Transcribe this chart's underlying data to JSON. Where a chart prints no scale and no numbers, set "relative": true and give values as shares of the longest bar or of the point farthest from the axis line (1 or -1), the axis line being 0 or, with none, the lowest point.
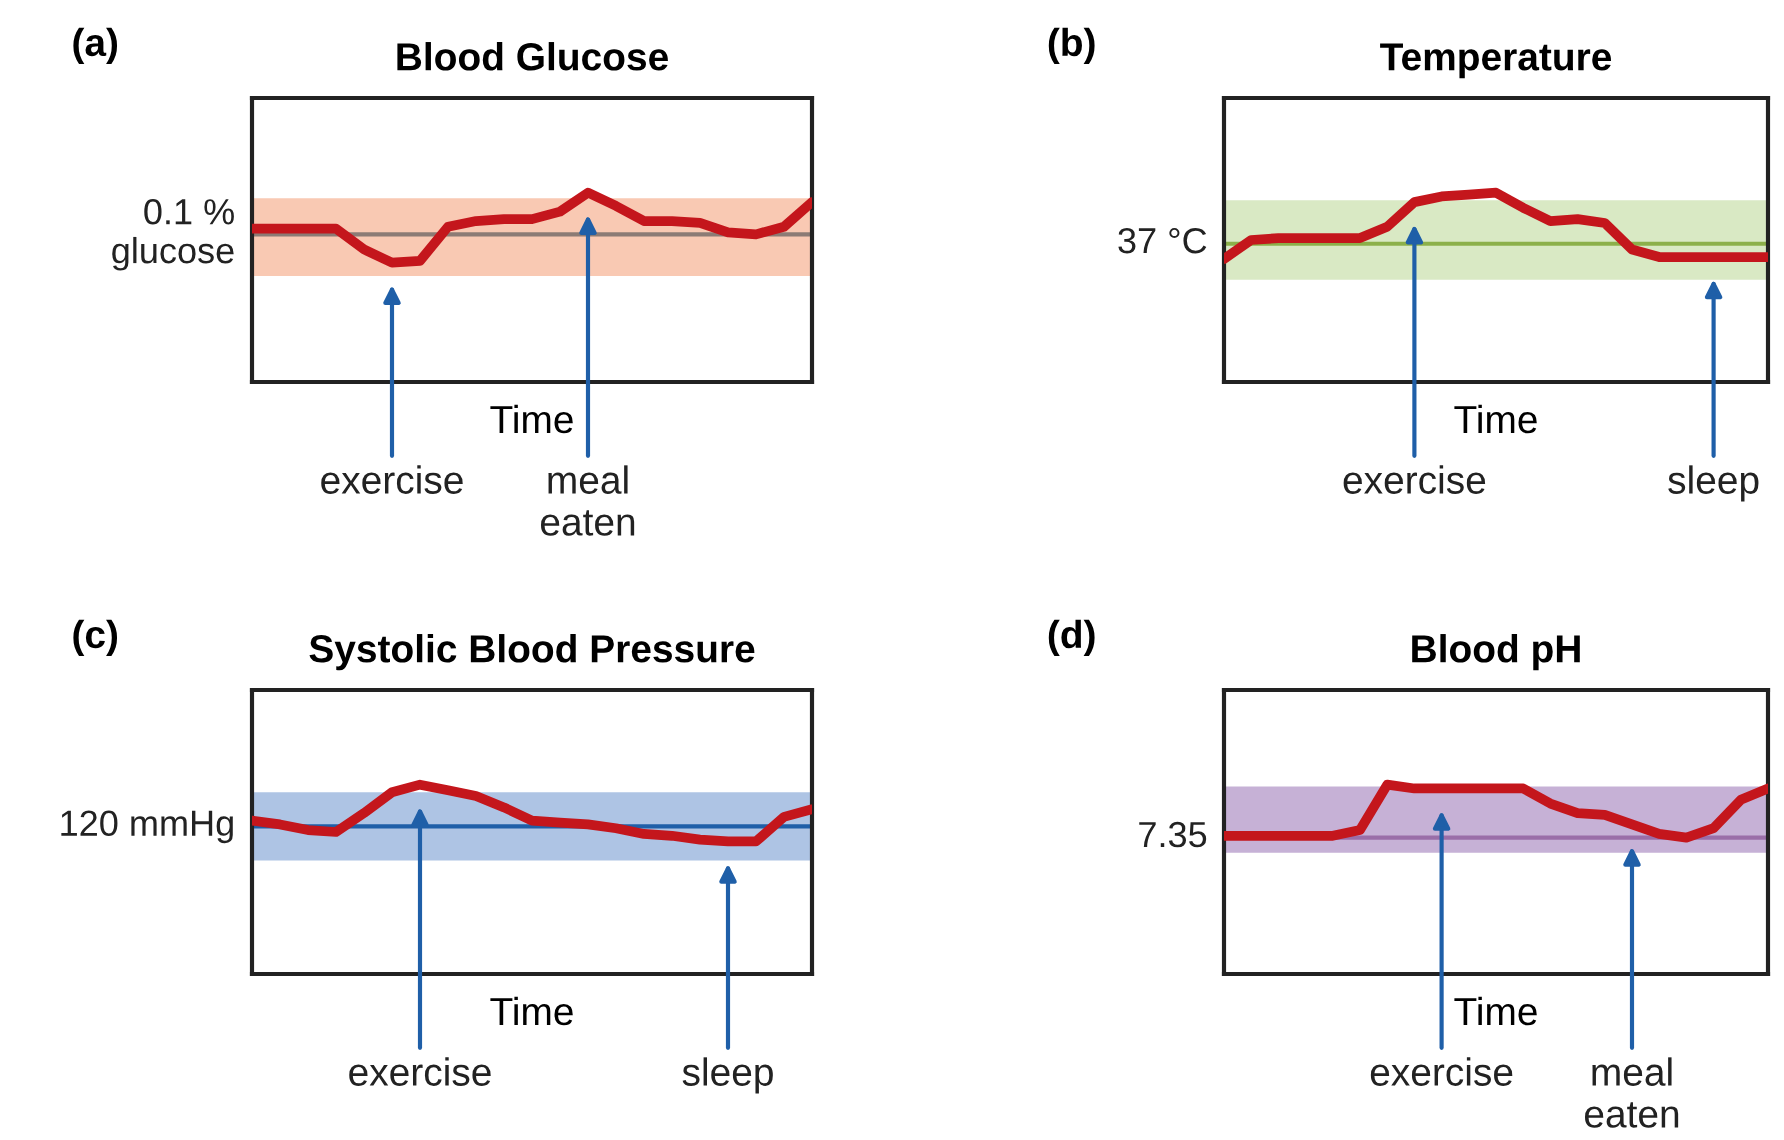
{
  "chart_data": [
    {
      "type": "line",
      "title": "Blood Glucose",
      "xlabel": "Time",
      "relative": true,
      "categories": [
        null,
        null,
        null,
        null,
        null,
        "exercise",
        null,
        null,
        null,
        null,
        null,
        null,
        "meal\neaten",
        null,
        null,
        null,
        null,
        null,
        null,
        null,
        null
      ],
      "series": [
        {
          "color": "#c4161c",
          "values": [
            0.81,
            0.81,
            0.81,
            0.81,
            0.7,
            0.63,
            0.64,
            0.82,
            0.85,
            0.86,
            0.86,
            0.9,
            1.0,
            0.93,
            0.85,
            0.85,
            0.84,
            0.79,
            0.78,
            0.82,
            0.95
          ]
        }
      ],
      "ref_lines": [
        {
          "axis": "y",
          "value": 0.78,
          "color": "#8c7b75"
        }
      ],
      "bands": [
        {
          "axis": "y",
          "from": 0.56,
          "to": 0.97,
          "color": "#f9c9b3"
        }
      ],
      "annotations": [
        "(a)",
        "0.1 %\nglucose"
      ]
    },
    {
      "type": "line",
      "title": "Temperature",
      "xlabel": "Time",
      "relative": true,
      "categories": [
        null,
        null,
        null,
        null,
        null,
        null,
        null,
        "exercise",
        null,
        null,
        null,
        null,
        null,
        null,
        null,
        null,
        null,
        null,
        "sleep",
        null,
        null
      ],
      "series": [
        {
          "color": "#c4161c",
          "values": [
            0.65,
            0.75,
            0.76,
            0.76,
            0.76,
            0.76,
            0.82,
            0.95,
            0.98,
            0.99,
            1.0,
            0.92,
            0.85,
            0.86,
            0.84,
            0.7,
            0.66,
            0.66,
            0.66,
            0.66,
            0.66
          ]
        }
      ],
      "ref_lines": [
        {
          "axis": "y",
          "value": 0.73,
          "color": "#8cb04a"
        }
      ],
      "bands": [
        {
          "axis": "y",
          "from": 0.54,
          "to": 0.96,
          "color": "#d9e9c4"
        }
      ],
      "annotations": [
        "(b)",
        "37 °C"
      ]
    },
    {
      "type": "line",
      "title": "Systolic Blood Pressure",
      "xlabel": "Time",
      "relative": true,
      "categories": [
        null,
        null,
        null,
        null,
        null,
        null,
        "exercise",
        null,
        null,
        null,
        null,
        null,
        null,
        null,
        null,
        null,
        null,
        "sleep",
        null,
        null,
        null
      ],
      "series": [
        {
          "color": "#c4161c",
          "values": [
            0.81,
            0.79,
            0.76,
            0.75,
            0.85,
            0.96,
            1.0,
            0.97,
            0.94,
            0.88,
            0.81,
            0.8,
            0.79,
            0.77,
            0.74,
            0.73,
            0.71,
            0.7,
            0.7,
            0.83,
            0.87
          ]
        }
      ],
      "ref_lines": [
        {
          "axis": "y",
          "value": 0.78,
          "color": "#1f5fa8"
        }
      ],
      "bands": [
        {
          "axis": "y",
          "from": 0.6,
          "to": 0.96,
          "color": "#aec4e4"
        }
      ],
      "annotations": [
        "(c)",
        "120 mmHg"
      ]
    },
    {
      "type": "line",
      "title": "Blood pH",
      "xlabel": "Time",
      "relative": true,
      "categories": [
        null,
        null,
        null,
        null,
        null,
        null,
        null,
        null,
        "exercise",
        null,
        null,
        null,
        null,
        null,
        null,
        "meal\neaten",
        null,
        null,
        null,
        null,
        null
      ],
      "series": [
        {
          "color": "#c4161c",
          "values": [
            0.73,
            0.73,
            0.73,
            0.73,
            0.73,
            0.76,
            1.0,
            0.98,
            0.98,
            0.98,
            0.98,
            0.98,
            0.9,
            0.85,
            0.84,
            0.79,
            0.74,
            0.72,
            0.77,
            0.92,
            0.98
          ]
        }
      ],
      "ref_lines": [
        {
          "axis": "y",
          "value": 0.72,
          "color": "#9a6ea8"
        }
      ],
      "bands": [
        {
          "axis": "y",
          "from": 0.64,
          "to": 0.99,
          "color": "#c6b1d6"
        }
      ],
      "annotations": [
        "(d)",
        "7.35"
      ]
    }
  ]
}
